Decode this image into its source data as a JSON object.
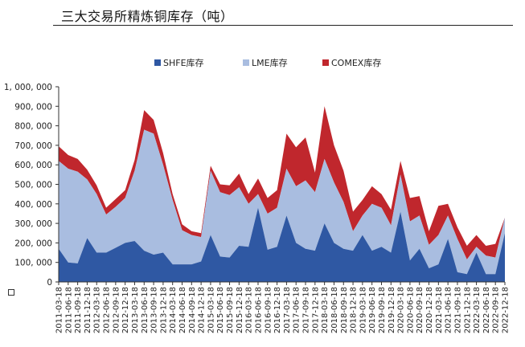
{
  "title": "三大交易所精炼铜库存（吨）",
  "chart_data": {
    "type": "area",
    "stacked": true,
    "title": "三大交易所精炼铜库存（吨）",
    "xlabel": "",
    "ylabel": "",
    "ylim": [
      0,
      1000000
    ],
    "yticks": [
      0,
      100000,
      200000,
      300000,
      400000,
      500000,
      600000,
      700000,
      800000,
      900000,
      1000000
    ],
    "ytick_labels": [
      "0",
      "100, 000",
      "200, 000",
      "300, 000",
      "400, 000",
      "500, 000",
      "600, 000",
      "700, 000",
      "800, 000",
      "900, 000",
      "1, 000, 000"
    ],
    "x_labels": [
      "2011-03-18",
      "2011-06-18",
      "2011-09-18",
      "2011-12-18",
      "2012-03-18",
      "2012-06-18",
      "2012-09-18",
      "2012-12-18",
      "2013-03-18",
      "2013-06-18",
      "2013-09-18",
      "2013-12-18",
      "2014-03-18",
      "2014-06-18",
      "2014-09-18",
      "2014-12-18",
      "2015-03-18",
      "2015-06-18",
      "2015-09-18",
      "2015-12-18",
      "2016-03-18",
      "2016-06-18",
      "2016-09-18",
      "2016-12-18",
      "2017-03-18",
      "2017-06-18",
      "2017-09-18",
      "2017-12-18",
      "2018-03-18",
      "2018-06-18",
      "2018-09-18",
      "2018-12-18",
      "2019-03-18",
      "2019-06-18",
      "2019-09-18",
      "2019-12-18",
      "2020-03-18",
      "2020-06-18",
      "2020-09-18",
      "2020-12-18",
      "2021-03-18",
      "2021-06-18",
      "2021-09-18",
      "2021-12-18",
      "2022-03-18",
      "2022-06-18",
      "2022-09-18",
      "2022-12-18"
    ],
    "legend": {
      "position": "top-center",
      "entries": [
        "SHFE库存",
        "LME库存",
        "COMEX库存"
      ]
    },
    "series": [
      {
        "name": "SHFE库存",
        "color": "#2f58a3",
        "values": [
          170000,
          100000,
          95000,
          225000,
          150000,
          150000,
          175000,
          200000,
          210000,
          160000,
          140000,
          150000,
          90000,
          90000,
          90000,
          105000,
          240000,
          130000,
          125000,
          185000,
          180000,
          380000,
          165000,
          180000,
          340000,
          200000,
          170000,
          160000,
          300000,
          200000,
          170000,
          160000,
          240000,
          160000,
          180000,
          150000,
          360000,
          110000,
          170000,
          70000,
          90000,
          220000,
          50000,
          40000,
          150000,
          40000,
          40000,
          250000
        ]
      },
      {
        "name": "LME库存",
        "color": "#a9bde0",
        "values": [
          450000,
          480000,
          470000,
          300000,
          300000,
          195000,
          210000,
          230000,
          360000,
          620000,
          620000,
          450000,
          330000,
          175000,
          150000,
          125000,
          330000,
          330000,
          320000,
          300000,
          220000,
          70000,
          185000,
          200000,
          240000,
          290000,
          350000,
          300000,
          330000,
          310000,
          240000,
          100000,
          100000,
          240000,
          200000,
          140000,
          190000,
          200000,
          170000,
          120000,
          150000,
          120000,
          170000,
          75000,
          30000,
          95000,
          85000,
          80000
        ]
      },
      {
        "name": "COMEX库存",
        "color": "#c0272d",
        "values": [
          75000,
          70000,
          65000,
          50000,
          45000,
          35000,
          40000,
          40000,
          55000,
          100000,
          70000,
          60000,
          30000,
          30000,
          20000,
          20000,
          25000,
          40000,
          50000,
          70000,
          50000,
          80000,
          80000,
          90000,
          180000,
          200000,
          220000,
          100000,
          270000,
          190000,
          160000,
          100000,
          80000,
          90000,
          70000,
          80000,
          70000,
          120000,
          100000,
          70000,
          150000,
          60000,
          60000,
          70000,
          60000,
          50000,
          70000,
          0
        ]
      }
    ]
  }
}
